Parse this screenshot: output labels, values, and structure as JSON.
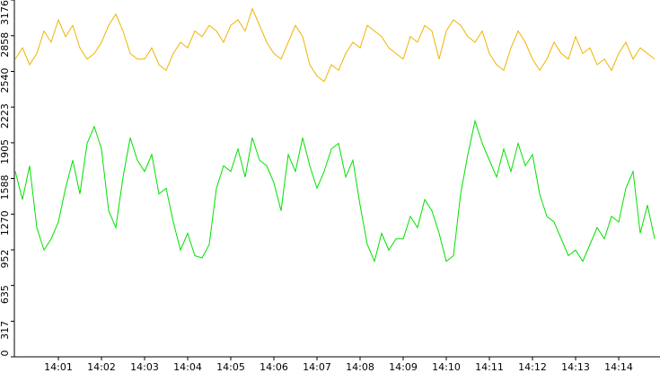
{
  "chart_data": {
    "type": "line",
    "categories": [
      null,
      null,
      null,
      null,
      null,
      null,
      "14:01",
      null,
      null,
      null,
      null,
      null,
      "14:02",
      null,
      null,
      null,
      null,
      null,
      "14:03",
      null,
      null,
      null,
      null,
      null,
      "14:04",
      null,
      null,
      null,
      null,
      null,
      "14:05",
      null,
      null,
      null,
      null,
      null,
      "14:06",
      null,
      null,
      null,
      null,
      null,
      "14:07",
      null,
      null,
      null,
      null,
      null,
      "14:08",
      null,
      null,
      null,
      null,
      null,
      "14:09",
      null,
      null,
      null,
      null,
      null,
      "14:10",
      null,
      null,
      null,
      null,
      null,
      "14:11",
      null,
      null,
      null,
      null,
      null,
      "14:12",
      null,
      null,
      null,
      null,
      null,
      "14:13",
      null,
      null,
      null,
      null,
      null,
      "14:14",
      null,
      null,
      null,
      null,
      null
    ],
    "series": [
      {
        "color": "#f0b400",
        "values": [
          2650,
          2750,
          2600,
          2700,
          2900,
          2800,
          3000,
          2850,
          2950,
          2750,
          2650,
          2700,
          2800,
          2950,
          3050,
          2900,
          2700,
          2650,
          2650,
          2750,
          2600,
          2550,
          2700,
          2800,
          2750,
          2900,
          2850,
          2950,
          2900,
          2800,
          2950,
          3000,
          2900,
          3100,
          2950,
          2800,
          2700,
          2650,
          2800,
          2950,
          2850,
          2600,
          2500,
          2450,
          2600,
          2550,
          2700,
          2800,
          2750,
          2950,
          2900,
          2850,
          2750,
          2700,
          2650,
          2850,
          2800,
          2950,
          2900,
          2650,
          2900,
          3000,
          2950,
          2850,
          2800,
          2900,
          2700,
          2600,
          2550,
          2750,
          2900,
          2800,
          2650,
          2550,
          2650,
          2800,
          2700,
          2650,
          2850,
          2700,
          2750,
          2600,
          2650,
          2550,
          2700,
          2800,
          2650,
          2750,
          2700,
          2650
        ]
      },
      {
        "color": "#00e000",
        "values": [
          1650,
          1400,
          1700,
          1150,
          950,
          1050,
          1200,
          1500,
          1750,
          1450,
          1900,
          2050,
          1850,
          1300,
          1150,
          1600,
          1950,
          1750,
          1650,
          1800,
          1450,
          1500,
          1200,
          950,
          1100,
          900,
          880,
          1000,
          1500,
          1700,
          1650,
          1850,
          1600,
          1950,
          1750,
          1700,
          1550,
          1300,
          1800,
          1650,
          1950,
          1700,
          1500,
          1650,
          1850,
          1900,
          1600,
          1750,
          1350,
          1000,
          850,
          1100,
          950,
          1050,
          1050,
          1250,
          1150,
          1400,
          1300,
          1100,
          850,
          900,
          1450,
          1800,
          2100,
          1900,
          1750,
          1600,
          1850,
          1650,
          1900,
          1700,
          1800,
          1450,
          1250,
          1200,
          1050,
          900,
          950,
          850,
          1000,
          1150,
          1050,
          1250,
          1200,
          1500,
          1650,
          1100,
          1350,
          1050
        ]
      }
    ],
    "ylim": [
      0,
      3176
    ],
    "yticks": [
      0,
      317,
      635,
      952,
      1270,
      1588,
      1905,
      2223,
      2540,
      2858,
      3176
    ]
  }
}
